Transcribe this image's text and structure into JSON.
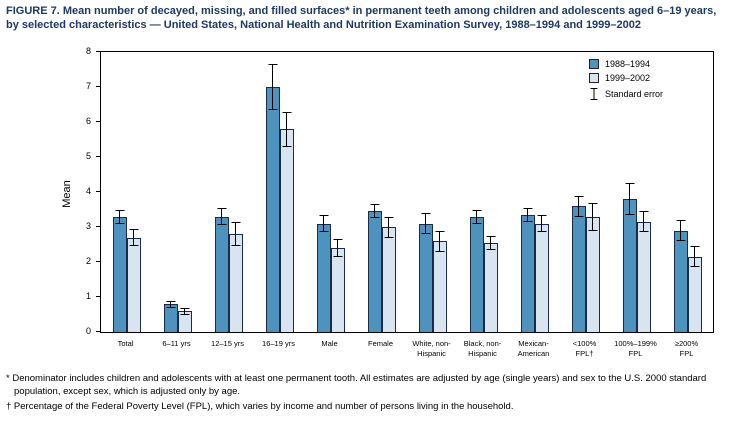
{
  "figure": {
    "title": "FIGURE 7. Mean number of decayed, missing, and filled surfaces* in permanent teeth among children and adolescents aged 6–19 years, by selected characteristics — United States, National Health and Nutrition Examination Survey, 1988–1994 and 1999–2002",
    "footnote_star": "* Denominator includes children and adolescents with at least one permanent tooth. All estimates are adjusted by age (single years) and sex to the U.S. 2000 standard population, except sex, which is adjusted only by age.",
    "footnote_dagger": "† Percentage of the Federal Poverty Level (FPL), which varies by income and number of persons living in the household."
  },
  "chart_data": {
    "type": "bar",
    "title": "",
    "xlabel": "",
    "ylabel": "Mean",
    "ylim": [
      0,
      8
    ],
    "yticks": [
      0,
      1,
      2,
      3,
      4,
      5,
      6,
      7,
      8
    ],
    "grid": false,
    "legend_position": "top-right",
    "legend_error_label": "Standard error",
    "error_bars": "standard error",
    "categories": [
      "Total",
      "6–11 yrs",
      "12–15 yrs",
      "16–19 yrs",
      "Male",
      "Female",
      "White, non-\nHispanic",
      "Black, non-\nHispanic",
      "Mexican-\nAmerican",
      "<100%\nFPL†",
      "100%–199%\nFPL",
      "≥200%\nFPL"
    ],
    "series": [
      {
        "name": "1988–1994",
        "color": "#4e93be",
        "values": [
          3.3,
          0.8,
          3.3,
          7.0,
          3.1,
          3.45,
          3.1,
          3.3,
          3.35,
          3.6,
          3.8,
          2.9
        ],
        "errors": [
          0.2,
          0.1,
          0.25,
          0.65,
          0.25,
          0.2,
          0.3,
          0.2,
          0.2,
          0.3,
          0.45,
          0.3
        ]
      },
      {
        "name": "1999–2002",
        "color": "#d9e4f1",
        "values": [
          2.7,
          0.6,
          2.8,
          5.8,
          2.4,
          3.0,
          2.6,
          2.55,
          3.1,
          3.3,
          3.15,
          2.15
        ],
        "errors": [
          0.25,
          0.1,
          0.35,
          0.5,
          0.25,
          0.3,
          0.3,
          0.2,
          0.25,
          0.4,
          0.3,
          0.3
        ]
      }
    ]
  }
}
